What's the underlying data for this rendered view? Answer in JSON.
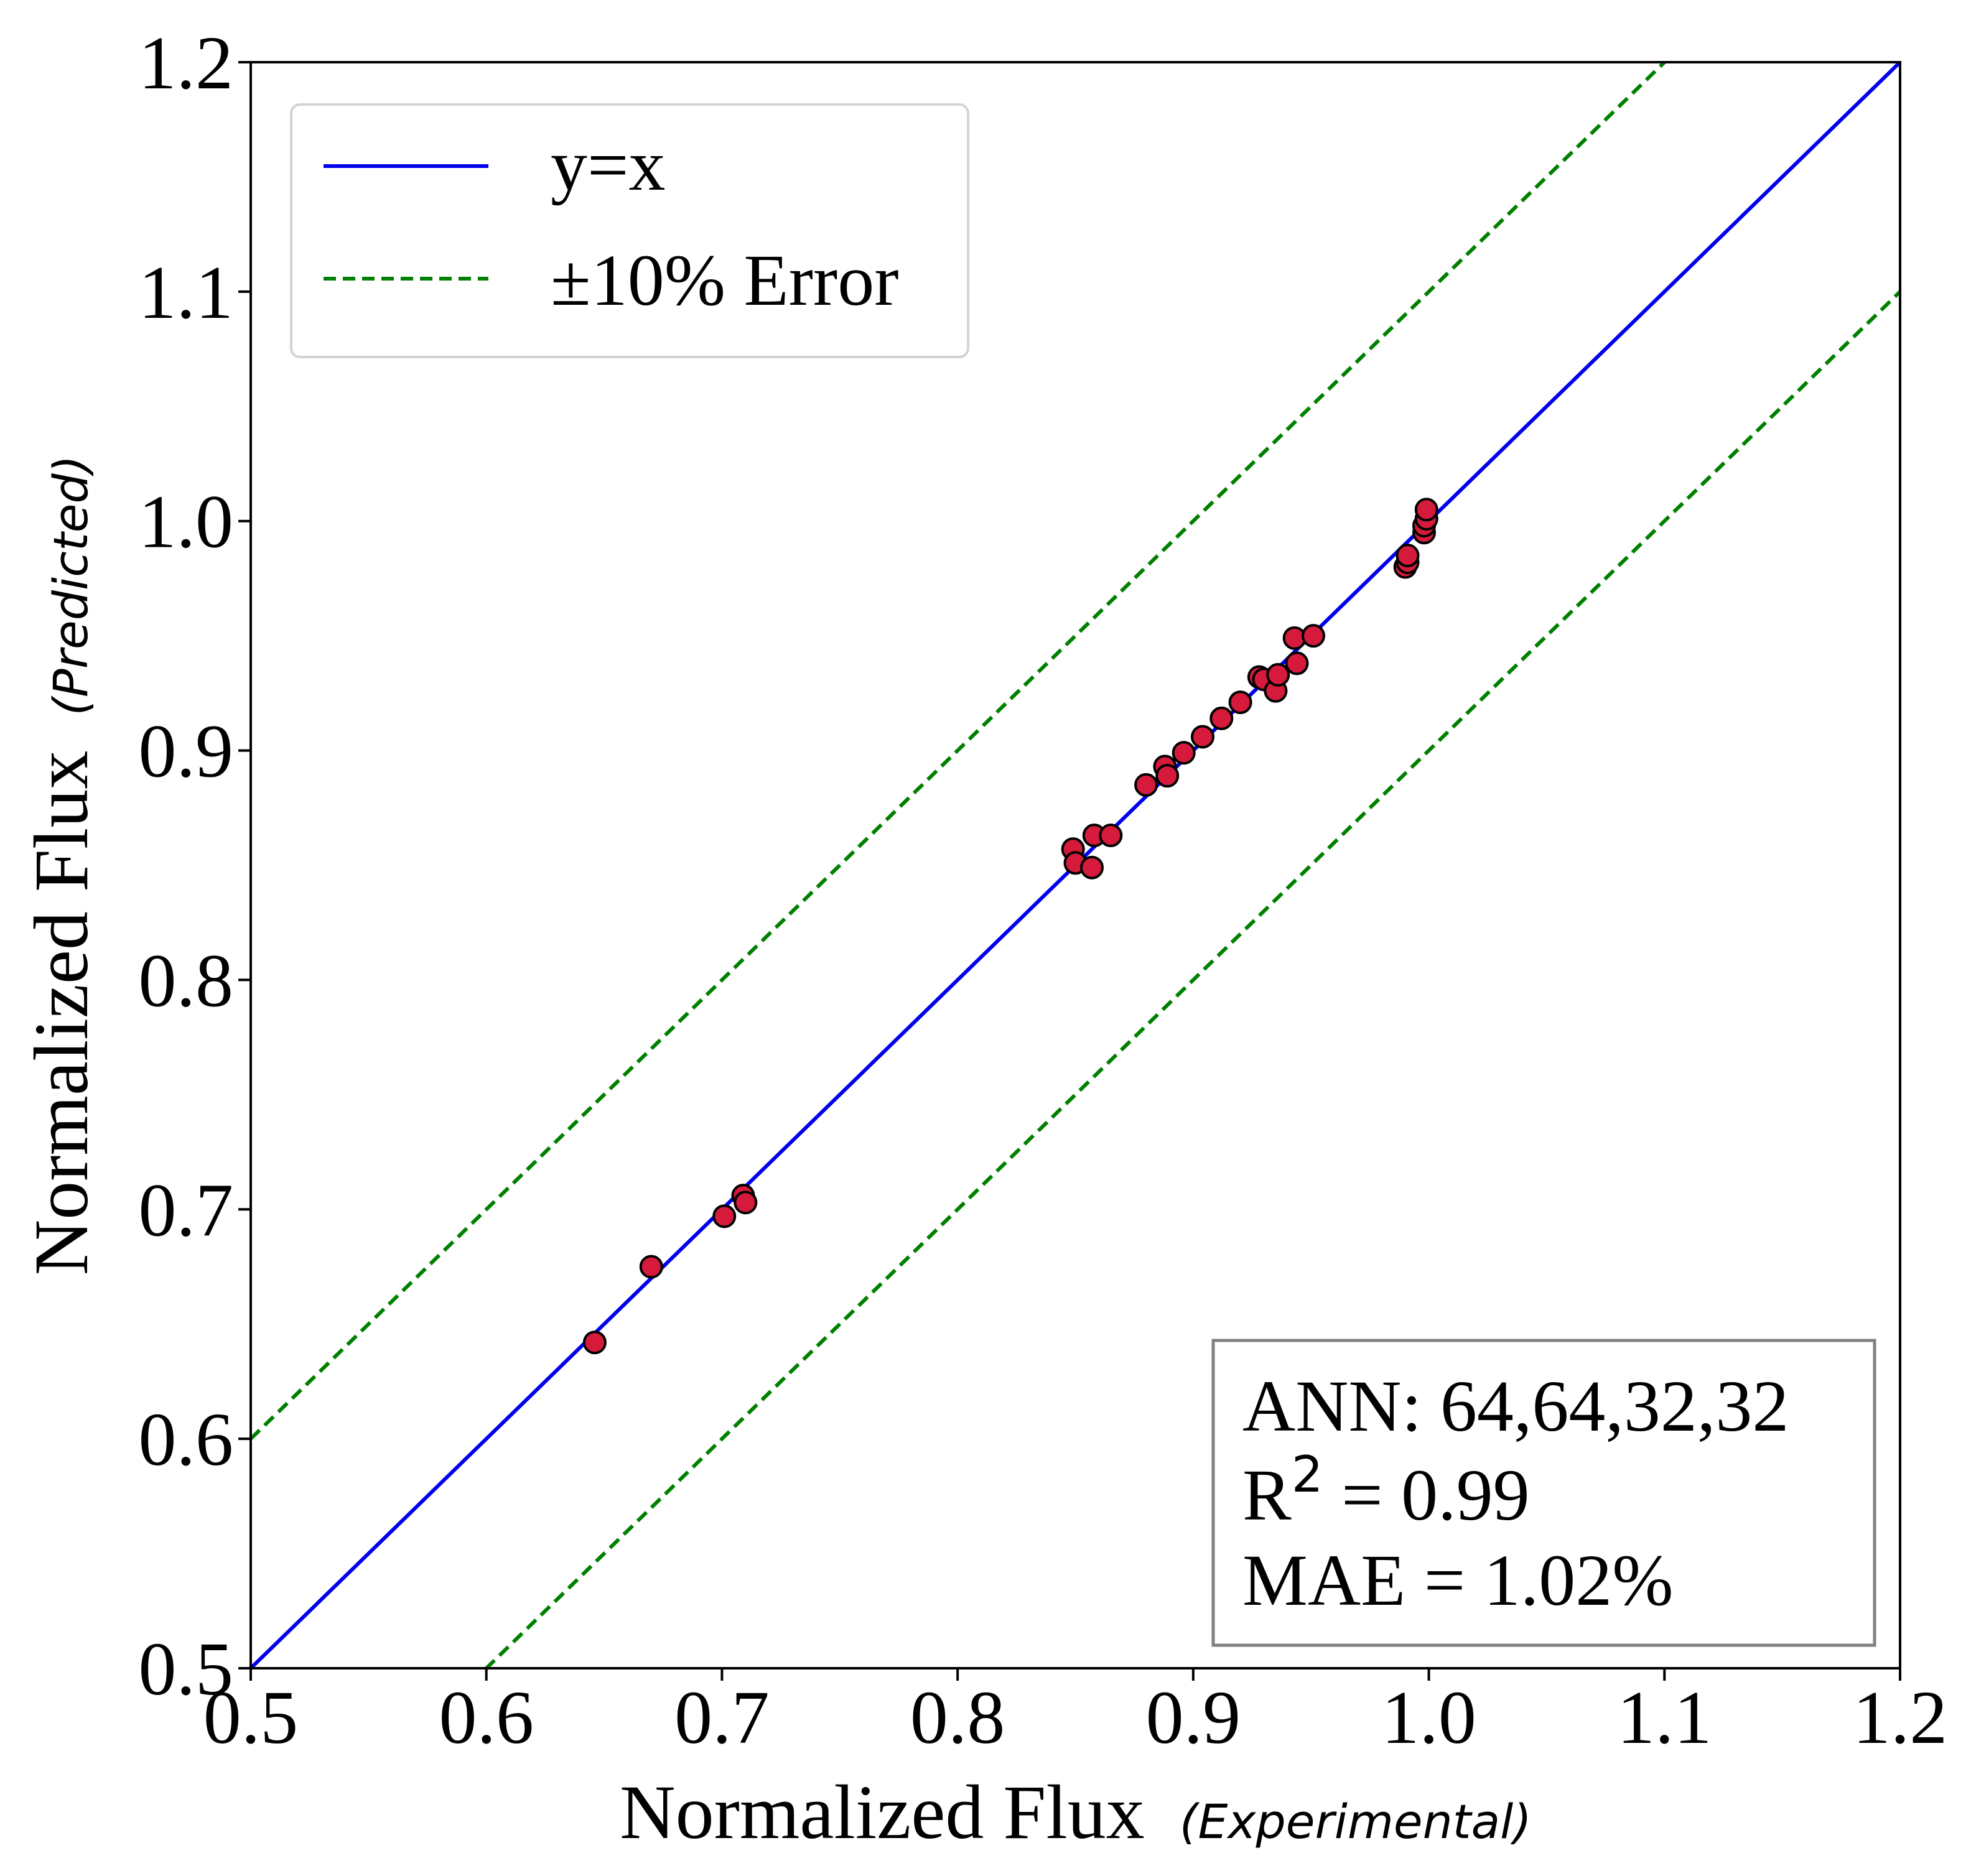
{
  "chart_data": {
    "type": "scatter",
    "title": "",
    "xlabel": "Normalized Flux",
    "xlabel_sub": "(Experimental)",
    "ylabel": "Normalized Flux",
    "ylabel_sub": "(Predicted)",
    "xlim": [
      0.5,
      1.2
    ],
    "ylim": [
      0.5,
      1.2
    ],
    "xticks": [
      "0.5",
      "0.6",
      "0.7",
      "0.8",
      "0.9",
      "1.0",
      "1.1",
      "1.2"
    ],
    "yticks": [
      "0.5",
      "0.6",
      "0.7",
      "0.8",
      "0.9",
      "1.0",
      "1.1",
      "1.2"
    ],
    "grid": false,
    "legend_position": "top-left",
    "lines": [
      {
        "name": "y=x",
        "slope": 1.0,
        "style": "solid",
        "color": "#0000ee"
      },
      {
        "name": "±10% Error",
        "offset": 0.1,
        "style": "dashed",
        "color": "#008000"
      }
    ],
    "points": {
      "color": "#d61a3c",
      "edge_color": "#000000",
      "x": [
        0.646,
        0.67,
        0.701,
        0.709,
        0.71,
        0.849,
        0.85,
        0.857,
        0.858,
        0.865,
        0.88,
        0.888,
        0.889,
        0.896,
        0.904,
        0.912,
        0.92,
        0.928,
        0.93,
        0.935,
        0.936,
        0.943,
        0.944,
        0.951,
        0.99,
        0.991,
        0.991,
        0.998,
        0.998,
        0.999,
        0.999
      ],
      "y": [
        0.642,
        0.675,
        0.697,
        0.706,
        0.703,
        0.857,
        0.851,
        0.849,
        0.863,
        0.863,
        0.885,
        0.893,
        0.889,
        0.899,
        0.906,
        0.914,
        0.921,
        0.932,
        0.931,
        0.926,
        0.933,
        0.949,
        0.938,
        0.95,
        0.98,
        0.982,
        0.985,
        0.995,
        0.998,
        1.001,
        1.005
      ]
    },
    "annotation": {
      "model": "ANN: 64,64,32,32",
      "r2_label": "R",
      "r2_exp": "2",
      "r2_value": " = 0.99",
      "mae": "MAE = 1.02%"
    }
  }
}
